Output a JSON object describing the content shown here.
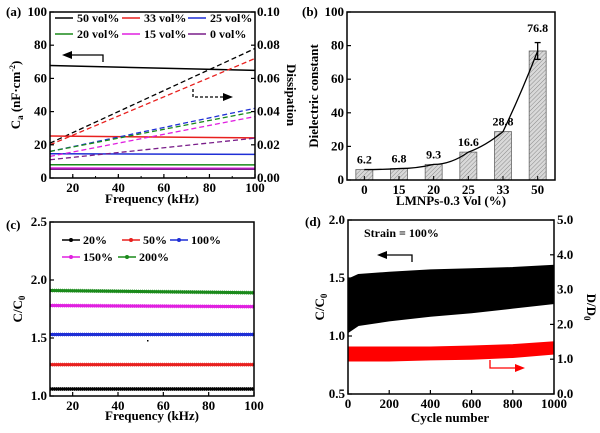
{
  "chart_data": [
    {
      "panel_label": "(a)",
      "type": "line",
      "xlabel": "Frequency (kHz)",
      "ylabel": "C",
      "ylabel_sub": "a",
      "ylabel_unit": " (nF·cm",
      "ylabel_sup": "-2",
      "ylabel_close": ")",
      "y2label": "Dissipation",
      "xlim": [
        10,
        100
      ],
      "ylim": [
        0,
        100
      ],
      "y2lim": [
        0,
        0.1
      ],
      "xticks": [
        20,
        40,
        60,
        80,
        100
      ],
      "yticks": [
        0,
        20,
        40,
        60,
        80,
        100
      ],
      "y2ticks": [
        "0.00",
        "0.02",
        "0.04",
        "0.06",
        "0.08",
        "0.10"
      ],
      "legend_position": "top",
      "series": [
        {
          "name": "50 vol%",
          "color": "#000000",
          "x": [
            10,
            100
          ],
          "capacitance": [
            67.8,
            64.8
          ],
          "dissipation": [
            0.021,
            0.078
          ]
        },
        {
          "name": "33 vol%",
          "color": "#e8201e",
          "x": [
            10,
            100
          ],
          "capacitance": [
            25.3,
            24.2
          ],
          "dissipation": [
            0.02,
            0.072
          ]
        },
        {
          "name": "25 vol%",
          "color": "#1f2fd6",
          "x": [
            10,
            100
          ],
          "capacitance": [
            14.6,
            14.2
          ],
          "dissipation": [
            0.016,
            0.042
          ]
        },
        {
          "name": "20 vol%",
          "color": "#1a8a1a",
          "x": [
            10,
            100
          ],
          "capacitance": [
            8.0,
            7.9
          ],
          "dissipation": [
            0.016,
            0.04
          ]
        },
        {
          "name": "15 vol%",
          "color": "#e020e0",
          "x": [
            10,
            100
          ],
          "capacitance": [
            6.0,
            5.9
          ],
          "dissipation": [
            0.013,
            0.037
          ]
        },
        {
          "name": "0 vol%",
          "color": "#7a1f8a",
          "x": [
            10,
            100
          ],
          "capacitance": [
            5.3,
            5.3
          ],
          "dissipation": [
            0.011,
            0.024
          ]
        }
      ],
      "annotations": [
        "left arrow: capacitance (solid) → left axis",
        "dashed arrow: dissipation (dashed) → right axis"
      ]
    },
    {
      "panel_label": "(b)",
      "type": "bar",
      "xlabel": "LMNPs-0.3 Vol (%)",
      "ylabel": "Dielectric constant",
      "ylim": [
        0,
        100
      ],
      "yticks": [
        0,
        20,
        40,
        60,
        80,
        100
      ],
      "categories": [
        "0",
        "15",
        "20",
        "25",
        "33",
        "50"
      ],
      "values": [
        6.2,
        6.8,
        9.3,
        16.6,
        28.8,
        76.8
      ],
      "data_labels": [
        "6.2",
        "6.8",
        "9.3",
        "16.6",
        "28.8",
        "76.8"
      ],
      "error_bar": {
        "category": "50",
        "plus_minus": 5
      },
      "trend_line": true,
      "bar_fill": "hatched grey"
    },
    {
      "panel_label": "(c)",
      "type": "line",
      "xlabel": "Frequency (kHz)",
      "ylabel": "C/C",
      "ylabel_sub": "0",
      "xlim": [
        10,
        100
      ],
      "ylim": [
        1.0,
        2.5
      ],
      "xticks": [
        20,
        40,
        60,
        80,
        100
      ],
      "yticks": [
        "1.0",
        "1.5",
        "2.0",
        "2.5"
      ],
      "legend_position": "top-left",
      "series": [
        {
          "name": "20%",
          "color": "#000000",
          "marker": "square",
          "x": [
            10,
            100
          ],
          "values": [
            1.06,
            1.06
          ]
        },
        {
          "name": "50%",
          "color": "#e8201e",
          "marker": "circle",
          "x": [
            10,
            100
          ],
          "values": [
            1.27,
            1.27
          ]
        },
        {
          "name": "100%",
          "color": "#1f2fd6",
          "marker": "triangle-up",
          "x": [
            10,
            100
          ],
          "values": [
            1.53,
            1.53
          ]
        },
        {
          "name": "150%",
          "color": "#e020e0",
          "marker": "triangle-down",
          "x": [
            10,
            100
          ],
          "values": [
            1.78,
            1.77
          ]
        },
        {
          "name": "200%",
          "color": "#1a8a1a",
          "marker": "diamond",
          "x": [
            10,
            100
          ],
          "values": [
            1.91,
            1.89
          ]
        }
      ]
    },
    {
      "panel_label": "(d)",
      "type": "area",
      "xlabel": "Cycle number",
      "ylabel": "C/C",
      "ylabel_sub": "0",
      "y2label": "D/D",
      "y2label_sub": "0",
      "xlim": [
        0,
        1000
      ],
      "ylim": [
        0.5,
        2.0
      ],
      "y2lim": [
        0.0,
        5.0
      ],
      "xticks": [
        0,
        200,
        400,
        600,
        800,
        1000
      ],
      "yticks": [
        "0.5",
        "1.0",
        "1.5",
        "2.0"
      ],
      "y2ticks": [
        "0.0",
        "1.0",
        "2.0",
        "3.0",
        "4.0",
        "5.0"
      ],
      "annotation": "Strain = 100%",
      "series": [
        {
          "name": "C/C0",
          "axis": "left",
          "color": "#000000",
          "x": [
            0,
            50,
            200,
            400,
            600,
            800,
            1000
          ],
          "upper": [
            1.49,
            1.53,
            1.55,
            1.57,
            1.58,
            1.59,
            1.61
          ],
          "lower": [
            1.03,
            1.09,
            1.13,
            1.17,
            1.2,
            1.24,
            1.28
          ]
        },
        {
          "name": "D/D0",
          "axis": "right",
          "color": "#ff0000",
          "x": [
            0,
            200,
            400,
            600,
            800,
            1000
          ],
          "upper": [
            1.35,
            1.35,
            1.35,
            1.38,
            1.42,
            1.5
          ],
          "lower": [
            0.95,
            0.95,
            0.98,
            1.0,
            1.05,
            1.15
          ]
        }
      ]
    }
  ]
}
